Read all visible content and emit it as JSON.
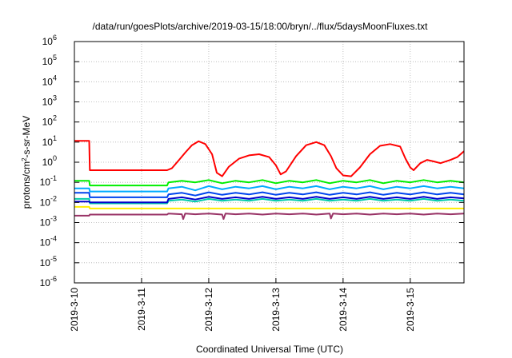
{
  "chart_data": {
    "type": "line",
    "title": "/data/run/goesPlots/archive/2019-03-15/18:00/bryn/../flux/5daysMoonFluxes.txt",
    "xlabel": "Coordinated Universal Time (UTC)",
    "ylabel": "protons/cm²-s-sr-MeV",
    "ylabel_parts": {
      "a": "protons/cm",
      "sup": "2",
      "b": "-s-sr-MeV"
    },
    "xlim": [
      0,
      5.8
    ],
    "ylim_log10": [
      -6,
      6
    ],
    "y_scale": "log",
    "grid": true,
    "x_ticks": [
      {
        "x": 0,
        "label": "2019-3-10"
      },
      {
        "x": 1,
        "label": "2019-3-11"
      },
      {
        "x": 2,
        "label": "2019-3-12"
      },
      {
        "x": 3,
        "label": "2019-3-13"
      },
      {
        "x": 4,
        "label": "2019-3-14"
      },
      {
        "x": 5,
        "label": "2019-3-15"
      }
    ],
    "y_ticks": [
      {
        "exp": 6,
        "base": "10",
        "sup": "6"
      },
      {
        "exp": 5,
        "base": "10",
        "sup": "5"
      },
      {
        "exp": 4,
        "base": "10",
        "sup": "4"
      },
      {
        "exp": 3,
        "base": "10",
        "sup": "3"
      },
      {
        "exp": 2,
        "base": "10",
        "sup": "2"
      },
      {
        "exp": 1,
        "base": "10",
        "sup": "1"
      },
      {
        "exp": 0,
        "base": "10",
        "sup": "0"
      },
      {
        "exp": -1,
        "base": "10",
        "sup": "-1"
      },
      {
        "exp": -2,
        "base": "10",
        "sup": "-2"
      },
      {
        "exp": -3,
        "base": "10",
        "sup": "-3"
      },
      {
        "exp": -4,
        "base": "10",
        "sup": "-4"
      },
      {
        "exp": -5,
        "base": "10",
        "sup": "-5"
      },
      {
        "exp": -6,
        "base": "10",
        "sup": "-6"
      }
    ],
    "series": [
      {
        "color": "#ff0000",
        "points": [
          [
            0,
            11.5
          ],
          [
            0.22,
            11.5
          ],
          [
            0.23,
            0.4
          ],
          [
            1.38,
            0.4
          ],
          [
            1.45,
            0.5
          ],
          [
            1.55,
            1.2
          ],
          [
            1.65,
            3
          ],
          [
            1.75,
            7
          ],
          [
            1.85,
            11
          ],
          [
            1.95,
            8
          ],
          [
            2.05,
            2.5
          ],
          [
            2.12,
            0.3
          ],
          [
            2.2,
            0.2
          ],
          [
            2.3,
            0.6
          ],
          [
            2.45,
            1.5
          ],
          [
            2.6,
            2.2
          ],
          [
            2.75,
            2.5
          ],
          [
            2.9,
            1.8
          ],
          [
            3.0,
            0.7
          ],
          [
            3.07,
            0.25
          ],
          [
            3.15,
            0.35
          ],
          [
            3.3,
            2
          ],
          [
            3.45,
            7
          ],
          [
            3.6,
            10
          ],
          [
            3.72,
            7
          ],
          [
            3.82,
            2
          ],
          [
            3.9,
            0.5
          ],
          [
            4.0,
            0.22
          ],
          [
            4.12,
            0.2
          ],
          [
            4.25,
            0.55
          ],
          [
            4.4,
            2.5
          ],
          [
            4.55,
            6.5
          ],
          [
            4.7,
            8
          ],
          [
            4.85,
            6
          ],
          [
            4.93,
            1.5
          ],
          [
            5.0,
            0.55
          ],
          [
            5.05,
            0.4
          ],
          [
            5.15,
            0.9
          ],
          [
            5.25,
            1.3
          ],
          [
            5.35,
            1.1
          ],
          [
            5.45,
            0.9
          ],
          [
            5.6,
            1.3
          ],
          [
            5.7,
            1.8
          ],
          [
            5.8,
            3.5
          ]
        ]
      },
      {
        "color": "#00ee00",
        "points": [
          [
            0,
            0.12
          ],
          [
            0.22,
            0.12
          ],
          [
            0.23,
            0.07
          ],
          [
            1.38,
            0.07
          ],
          [
            1.4,
            0.1
          ],
          [
            1.6,
            0.12
          ],
          [
            1.8,
            0.1
          ],
          [
            2.0,
            0.13
          ],
          [
            2.2,
            0.09
          ],
          [
            2.4,
            0.12
          ],
          [
            2.6,
            0.1
          ],
          [
            2.8,
            0.13
          ],
          [
            3.0,
            0.09
          ],
          [
            3.2,
            0.12
          ],
          [
            3.4,
            0.1
          ],
          [
            3.6,
            0.13
          ],
          [
            3.8,
            0.09
          ],
          [
            4.0,
            0.12
          ],
          [
            4.2,
            0.1
          ],
          [
            4.4,
            0.13
          ],
          [
            4.6,
            0.09
          ],
          [
            4.8,
            0.12
          ],
          [
            5.0,
            0.1
          ],
          [
            5.2,
            0.13
          ],
          [
            5.4,
            0.1
          ],
          [
            5.6,
            0.12
          ],
          [
            5.8,
            0.1
          ]
        ]
      },
      {
        "color": "#00aaff",
        "points": [
          [
            0,
            0.05
          ],
          [
            0.22,
            0.05
          ],
          [
            0.23,
            0.035
          ],
          [
            1.38,
            0.035
          ],
          [
            1.4,
            0.05
          ],
          [
            1.6,
            0.06
          ],
          [
            1.8,
            0.04
          ],
          [
            2.0,
            0.065
          ],
          [
            2.2,
            0.045
          ],
          [
            2.4,
            0.06
          ],
          [
            2.6,
            0.05
          ],
          [
            2.8,
            0.065
          ],
          [
            3.0,
            0.045
          ],
          [
            3.2,
            0.06
          ],
          [
            3.4,
            0.05
          ],
          [
            3.6,
            0.065
          ],
          [
            3.8,
            0.045
          ],
          [
            4.0,
            0.06
          ],
          [
            4.2,
            0.05
          ],
          [
            4.4,
            0.065
          ],
          [
            4.6,
            0.045
          ],
          [
            4.8,
            0.06
          ],
          [
            5.0,
            0.05
          ],
          [
            5.2,
            0.065
          ],
          [
            5.4,
            0.05
          ],
          [
            5.6,
            0.06
          ],
          [
            5.8,
            0.05
          ]
        ]
      },
      {
        "color": "#0044ee",
        "points": [
          [
            0,
            0.03
          ],
          [
            0.22,
            0.03
          ],
          [
            0.23,
            0.018
          ],
          [
            1.38,
            0.018
          ],
          [
            1.4,
            0.025
          ],
          [
            1.6,
            0.03
          ],
          [
            1.8,
            0.022
          ],
          [
            2.0,
            0.032
          ],
          [
            2.2,
            0.024
          ],
          [
            2.4,
            0.03
          ],
          [
            2.6,
            0.025
          ],
          [
            2.8,
            0.032
          ],
          [
            3.0,
            0.024
          ],
          [
            3.2,
            0.03
          ],
          [
            3.4,
            0.025
          ],
          [
            3.6,
            0.032
          ],
          [
            3.8,
            0.024
          ],
          [
            4.0,
            0.03
          ],
          [
            4.2,
            0.025
          ],
          [
            4.4,
            0.032
          ],
          [
            4.6,
            0.024
          ],
          [
            4.8,
            0.03
          ],
          [
            5.0,
            0.025
          ],
          [
            5.2,
            0.032
          ],
          [
            5.4,
            0.025
          ],
          [
            5.6,
            0.03
          ],
          [
            5.8,
            0.025
          ]
        ]
      },
      {
        "color": "#00ccaa",
        "points": [
          [
            0,
            0.015
          ],
          [
            0.22,
            0.015
          ],
          [
            0.23,
            0.009
          ],
          [
            1.38,
            0.009
          ],
          [
            1.4,
            0.012
          ],
          [
            1.6,
            0.014
          ],
          [
            1.8,
            0.011
          ],
          [
            2.0,
            0.015
          ],
          [
            2.2,
            0.012
          ],
          [
            2.4,
            0.014
          ],
          [
            2.6,
            0.012
          ],
          [
            2.8,
            0.015
          ],
          [
            3.0,
            0.012
          ],
          [
            3.2,
            0.014
          ],
          [
            3.4,
            0.012
          ],
          [
            3.6,
            0.015
          ],
          [
            3.8,
            0.012
          ],
          [
            4.0,
            0.014
          ],
          [
            4.2,
            0.012
          ],
          [
            4.4,
            0.015
          ],
          [
            4.6,
            0.012
          ],
          [
            4.8,
            0.014
          ],
          [
            5.0,
            0.012
          ],
          [
            5.2,
            0.015
          ],
          [
            5.4,
            0.012
          ],
          [
            5.6,
            0.014
          ],
          [
            5.8,
            0.012
          ]
        ]
      },
      {
        "color": "#0000cc",
        "points": [
          [
            0,
            0.011
          ],
          [
            0.22,
            0.011
          ],
          [
            0.23,
            0.01
          ],
          [
            1.38,
            0.01
          ],
          [
            1.4,
            0.015
          ],
          [
            1.6,
            0.018
          ],
          [
            1.8,
            0.014
          ],
          [
            2.0,
            0.019
          ],
          [
            2.2,
            0.015
          ],
          [
            2.4,
            0.018
          ],
          [
            2.6,
            0.015
          ],
          [
            2.8,
            0.019
          ],
          [
            3.0,
            0.015
          ],
          [
            3.2,
            0.018
          ],
          [
            3.4,
            0.015
          ],
          [
            3.6,
            0.019
          ],
          [
            3.8,
            0.015
          ],
          [
            4.0,
            0.018
          ],
          [
            4.2,
            0.015
          ],
          [
            4.4,
            0.019
          ],
          [
            4.6,
            0.015
          ],
          [
            4.8,
            0.018
          ],
          [
            5.0,
            0.015
          ],
          [
            5.2,
            0.019
          ],
          [
            5.4,
            0.015
          ],
          [
            5.6,
            0.018
          ],
          [
            5.8,
            0.016
          ]
        ]
      },
      {
        "color": "#ffee00",
        "points": [
          [
            0,
            0.006
          ],
          [
            0.22,
            0.006
          ],
          [
            0.23,
            0.005
          ],
          [
            1.38,
            0.005
          ],
          [
            1.4,
            0.005
          ],
          [
            2.0,
            0.005
          ],
          [
            3.0,
            0.005
          ],
          [
            4.0,
            0.005
          ],
          [
            5.0,
            0.005
          ],
          [
            5.8,
            0.005
          ]
        ]
      },
      {
        "color": "#993366",
        "points": [
          [
            0,
            0.0022
          ],
          [
            0.22,
            0.0022
          ],
          [
            0.23,
            0.0025
          ],
          [
            1.38,
            0.0025
          ],
          [
            1.4,
            0.0028
          ],
          [
            1.6,
            0.0026
          ],
          [
            1.62,
            0.0015
          ],
          [
            1.65,
            0.0028
          ],
          [
            1.8,
            0.0026
          ],
          [
            2.0,
            0.0028
          ],
          [
            2.2,
            0.0025
          ],
          [
            2.22,
            0.0015
          ],
          [
            2.25,
            0.0028
          ],
          [
            2.4,
            0.0026
          ],
          [
            2.6,
            0.0028
          ],
          [
            2.8,
            0.0025
          ],
          [
            3.0,
            0.0028
          ],
          [
            3.2,
            0.0026
          ],
          [
            3.4,
            0.0028
          ],
          [
            3.6,
            0.0025
          ],
          [
            3.8,
            0.0028
          ],
          [
            3.82,
            0.0016
          ],
          [
            3.85,
            0.0028
          ],
          [
            4.0,
            0.0026
          ],
          [
            4.2,
            0.0028
          ],
          [
            4.4,
            0.0025
          ],
          [
            4.6,
            0.0028
          ],
          [
            4.8,
            0.0026
          ],
          [
            5.0,
            0.0028
          ],
          [
            5.2,
            0.0025
          ],
          [
            5.4,
            0.0028
          ],
          [
            5.6,
            0.0026
          ],
          [
            5.8,
            0.0028
          ]
        ]
      }
    ]
  }
}
